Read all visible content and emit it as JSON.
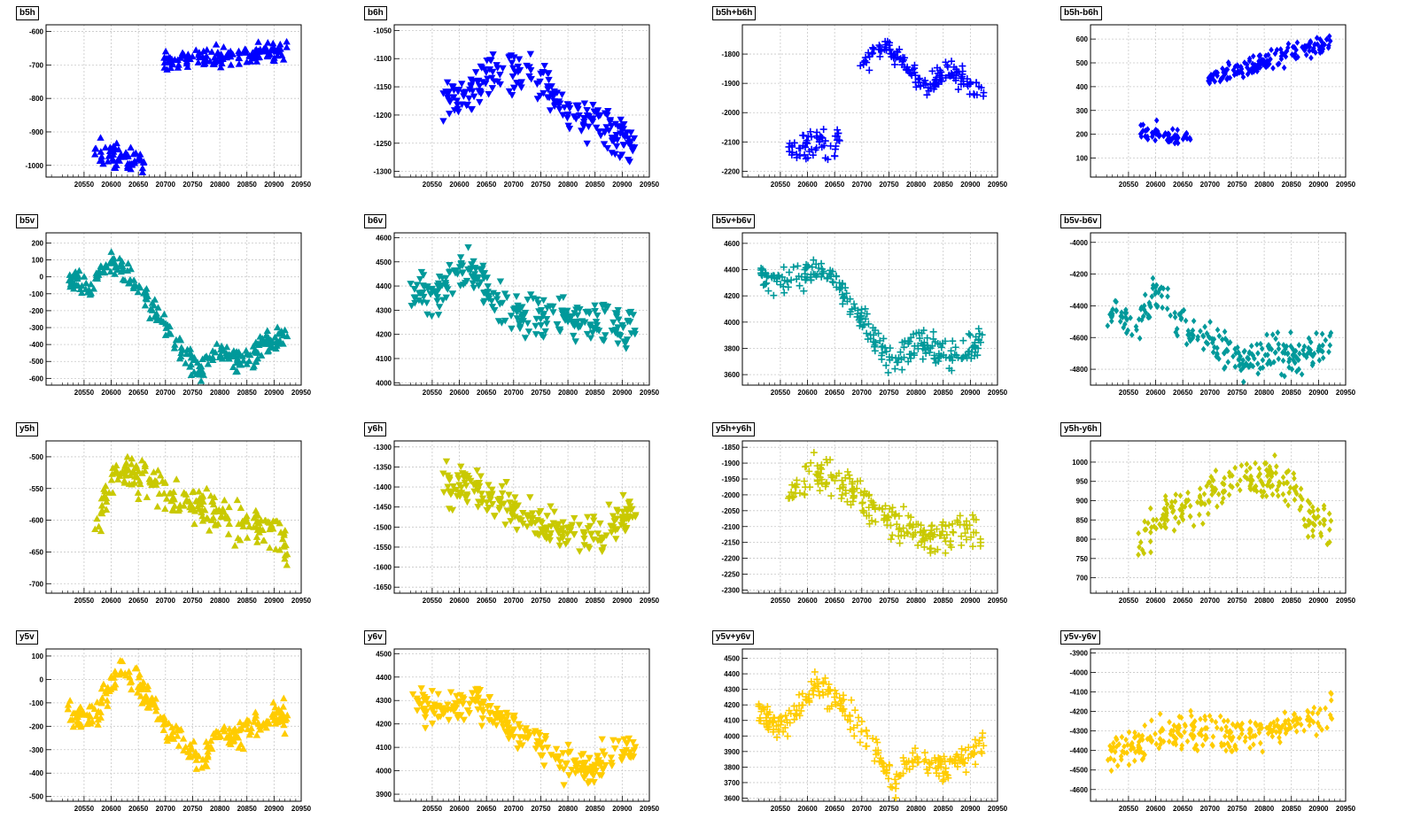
{
  "figure": {
    "x_ticks": [
      20550,
      20600,
      20650,
      20700,
      20750,
      20800,
      20850,
      20900,
      20950
    ],
    "xlim": [
      20480,
      20950
    ],
    "colors": {
      "blue": "#0000ff",
      "teal": "#00999a",
      "olive": "#c9c901",
      "gold": "#ffcc00"
    }
  },
  "chart_data": [
    {
      "title": "b5h",
      "type": "scatter",
      "color": "#0000ff",
      "marker": "triangle-up",
      "ylim": [
        -1035,
        -580
      ],
      "y_ticks": [
        -600,
        -700,
        -800,
        -900,
        -1000
      ],
      "segments": [
        {
          "x0": 20570,
          "x1": 20662,
          "center": [
            -960,
            -985
          ],
          "spread": 55
        },
        {
          "x0": 20697,
          "x1": 20925,
          "center": [
            -690,
            -660
          ],
          "spread": 45
        }
      ]
    },
    {
      "title": "b6h",
      "type": "scatter",
      "color": "#0000ff",
      "marker": "triangle-down",
      "ylim": [
        -1310,
        -1040
      ],
      "y_ticks": [
        -1050,
        -1100,
        -1150,
        -1200,
        -1250,
        -1300
      ],
      "segments": [
        {
          "x0": 20565,
          "x1": 20925,
          "points": [
            [
              20570,
              -1180
            ],
            [
              20620,
              -1160
            ],
            [
              20660,
              -1125
            ],
            [
              20720,
              -1120
            ],
            [
              20760,
              -1140
            ],
            [
              20800,
              -1200
            ],
            [
              20840,
              -1210
            ],
            [
              20880,
              -1230
            ],
            [
              20925,
              -1250
            ]
          ],
          "spread": 55
        }
      ]
    },
    {
      "title": "b5h+b6h",
      "type": "scatter",
      "color": "#0000ff",
      "marker": "plus",
      "ylim": [
        -2220,
        -1700
      ],
      "y_ticks": [
        -1800,
        -1900,
        -2000,
        -2100,
        -2200
      ],
      "segments": [
        {
          "x0": 20565,
          "x1": 20660,
          "center": [
            -2130,
            -2100
          ],
          "spread": 70
        },
        {
          "x0": 20695,
          "x1": 20925,
          "points": [
            [
              20700,
              -1830
            ],
            [
              20740,
              -1770
            ],
            [
              20780,
              -1830
            ],
            [
              20820,
              -1920
            ],
            [
              20860,
              -1850
            ],
            [
              20900,
              -1900
            ],
            [
              20925,
              -1940
            ]
          ],
          "spread": 60
        }
      ]
    },
    {
      "title": "b5h-b6h",
      "type": "scatter",
      "color": "#0000ff",
      "marker": "diamond",
      "ylim": [
        20,
        660
      ],
      "y_ticks": [
        100,
        200,
        300,
        400,
        500,
        600
      ],
      "segments": [
        {
          "x0": 20570,
          "x1": 20665,
          "center": [
            230,
            160
          ],
          "spread": 70
        },
        {
          "x0": 20697,
          "x1": 20925,
          "center": [
            440,
            590
          ],
          "spread": 60
        }
      ]
    },
    {
      "title": "b5v",
      "type": "scatter",
      "color": "#00999a",
      "marker": "triangle-up",
      "ylim": [
        -640,
        260
      ],
      "y_ticks": [
        200,
        100,
        0,
        -100,
        -200,
        -300,
        -400,
        -500,
        -600
      ],
      "segments": [
        {
          "x0": 20520,
          "x1": 20925,
          "points": [
            [
              20520,
              0
            ],
            [
              20560,
              -80
            ],
            [
              20600,
              100
            ],
            [
              20640,
              0
            ],
            [
              20680,
              -200
            ],
            [
              20720,
              -400
            ],
            [
              20760,
              -550
            ],
            [
              20800,
              -450
            ],
            [
              20850,
              -500
            ],
            [
              20880,
              -400
            ],
            [
              20925,
              -350
            ]
          ],
          "spread": 110
        }
      ]
    },
    {
      "title": "b6v",
      "type": "scatter",
      "color": "#00999a",
      "marker": "triangle-down",
      "ylim": [
        3990,
        4620
      ],
      "y_ticks": [
        4000,
        4100,
        4200,
        4300,
        4400,
        4500,
        4600
      ],
      "segments": [
        {
          "x0": 20510,
          "x1": 20925,
          "points": [
            [
              20510,
              4390
            ],
            [
              20560,
              4350
            ],
            [
              20620,
              4480
            ],
            [
              20660,
              4350
            ],
            [
              20720,
              4270
            ],
            [
              20800,
              4270
            ],
            [
              20860,
              4250
            ],
            [
              20925,
              4230
            ]
          ],
          "spread": 130
        }
      ]
    },
    {
      "title": "b5v+b6v",
      "type": "scatter",
      "color": "#00999a",
      "marker": "plus",
      "ylim": [
        3520,
        4680
      ],
      "y_ticks": [
        3600,
        3800,
        4000,
        4200,
        4400,
        4600
      ],
      "segments": [
        {
          "x0": 20510,
          "x1": 20925,
          "points": [
            [
              20510,
              4380
            ],
            [
              20560,
              4300
            ],
            [
              20620,
              4400
            ],
            [
              20650,
              4350
            ],
            [
              20700,
              4000
            ],
            [
              20760,
              3700
            ],
            [
              20800,
              3850
            ],
            [
              20860,
              3750
            ],
            [
              20925,
              3850
            ]
          ],
          "spread": 160
        }
      ]
    },
    {
      "title": "b5v-b6v",
      "type": "scatter",
      "color": "#00999a",
      "marker": "diamond",
      "ylim": [
        -4900,
        -3940
      ],
      "y_ticks": [
        -4000,
        -4200,
        -4400,
        -4600,
        -4800
      ],
      "segments": [
        {
          "x0": 20510,
          "x1": 20925,
          "points": [
            [
              20510,
              -4380
            ],
            [
              20560,
              -4580
            ],
            [
              20600,
              -4300
            ],
            [
              20640,
              -4500
            ],
            [
              20700,
              -4600
            ],
            [
              20760,
              -4780
            ],
            [
              20800,
              -4700
            ],
            [
              20860,
              -4720
            ],
            [
              20925,
              -4600
            ]
          ],
          "spread": 160
        }
      ]
    },
    {
      "title": "y5h",
      "type": "scatter",
      "color": "#c9c901",
      "marker": "triangle-up",
      "ylim": [
        -715,
        -475
      ],
      "y_ticks": [
        -500,
        -550,
        -600,
        -650,
        -700
      ],
      "segments": [
        {
          "x0": 20570,
          "x1": 20925,
          "points": [
            [
              20570,
              -600
            ],
            [
              20610,
              -520
            ],
            [
              20660,
              -530
            ],
            [
              20720,
              -565
            ],
            [
              20780,
              -590
            ],
            [
              20840,
              -600
            ],
            [
              20880,
              -610
            ],
            [
              20925,
              -640
            ]
          ],
          "spread": 45
        }
      ]
    },
    {
      "title": "y6h",
      "type": "scatter",
      "color": "#c9c901",
      "marker": "triangle-down",
      "ylim": [
        -1665,
        -1285
      ],
      "y_ticks": [
        -1300,
        -1350,
        -1400,
        -1450,
        -1500,
        -1550,
        -1600,
        -1650
      ],
      "segments": [
        {
          "x0": 20570,
          "x1": 20925,
          "points": [
            [
              20570,
              -1400
            ],
            [
              20620,
              -1400
            ],
            [
              20680,
              -1440
            ],
            [
              20740,
              -1490
            ],
            [
              20800,
              -1520
            ],
            [
              20860,
              -1530
            ],
            [
              20900,
              -1470
            ],
            [
              20925,
              -1460
            ]
          ],
          "spread": 70
        }
      ]
    },
    {
      "title": "y5h+y6h",
      "type": "scatter",
      "color": "#c9c901",
      "marker": "plus",
      "ylim": [
        -2310,
        -1830
      ],
      "y_ticks": [
        -1850,
        -1900,
        -1950,
        -2000,
        -2050,
        -2100,
        -2150,
        -2200,
        -2250,
        -2300
      ],
      "segments": [
        {
          "x0": 20565,
          "x1": 20925,
          "points": [
            [
              20565,
              -2000
            ],
            [
              20610,
              -1930
            ],
            [
              20660,
              -1950
            ],
            [
              20720,
              -2040
            ],
            [
              20780,
              -2100
            ],
            [
              20840,
              -2150
            ],
            [
              20880,
              -2110
            ],
            [
              20925,
              -2120
            ]
          ],
          "spread": 80
        }
      ]
    },
    {
      "title": "y5h-y6h",
      "type": "scatter",
      "color": "#c9c901",
      "marker": "diamond",
      "ylim": [
        660,
        1055
      ],
      "y_ticks": [
        700,
        750,
        800,
        850,
        900,
        950,
        1000
      ],
      "segments": [
        {
          "x0": 20565,
          "x1": 20925,
          "points": [
            [
              20565,
              800
            ],
            [
              20620,
              860
            ],
            [
              20680,
              900
            ],
            [
              20740,
              950
            ],
            [
              20800,
              960
            ],
            [
              20850,
              950
            ],
            [
              20880,
              860
            ],
            [
              20925,
              820
            ]
          ],
          "spread": 80
        }
      ]
    },
    {
      "title": "y5v",
      "type": "scatter",
      "color": "#ffcc00",
      "marker": "triangle-up",
      "ylim": [
        -520,
        130
      ],
      "y_ticks": [
        100,
        0,
        -100,
        -200,
        -300,
        -400,
        -500
      ],
      "segments": [
        {
          "x0": 20520,
          "x1": 20925,
          "points": [
            [
              20520,
              -150
            ],
            [
              20570,
              -150
            ],
            [
              20620,
              50
            ],
            [
              20660,
              -50
            ],
            [
              20700,
              -200
            ],
            [
              20760,
              -350
            ],
            [
              20800,
              -250
            ],
            [
              20860,
              -200
            ],
            [
              20925,
              -150
            ]
          ],
          "spread": 90
        }
      ]
    },
    {
      "title": "y6v",
      "type": "scatter",
      "color": "#ffcc00",
      "marker": "triangle-down",
      "ylim": [
        3870,
        4520
      ],
      "y_ticks": [
        3900,
        4000,
        4100,
        4200,
        4300,
        4400,
        4500
      ],
      "segments": [
        {
          "x0": 20510,
          "x1": 20925,
          "points": [
            [
              20510,
              4300
            ],
            [
              20560,
              4250
            ],
            [
              20620,
              4300
            ],
            [
              20660,
              4250
            ],
            [
              20720,
              4150
            ],
            [
              20780,
              4050
            ],
            [
              20840,
              4000
            ],
            [
              20900,
              4080
            ],
            [
              20925,
              4100
            ]
          ],
          "spread": 110
        }
      ]
    },
    {
      "title": "y5v+y6v",
      "type": "scatter",
      "color": "#ffcc00",
      "marker": "plus",
      "ylim": [
        3580,
        4560
      ],
      "y_ticks": [
        3600,
        3700,
        3800,
        3900,
        4000,
        4100,
        4200,
        4300,
        4400,
        4500
      ],
      "segments": [
        {
          "x0": 20510,
          "x1": 20925,
          "points": [
            [
              20510,
              4150
            ],
            [
              20560,
              4050
            ],
            [
              20620,
              4350
            ],
            [
              20660,
              4200
            ],
            [
              20720,
              3950
            ],
            [
              20760,
              3700
            ],
            [
              20800,
              3850
            ],
            [
              20860,
              3800
            ],
            [
              20925,
              3950
            ]
          ],
          "spread": 130
        }
      ]
    },
    {
      "title": "y5v-y6v",
      "type": "scatter",
      "color": "#ffcc00",
      "marker": "diamond",
      "ylim": [
        -4660,
        -3880
      ],
      "y_ticks": [
        -3900,
        -4000,
        -4100,
        -4200,
        -4300,
        -4400,
        -4500,
        -4600
      ],
      "segments": [
        {
          "x0": 20510,
          "x1": 20925,
          "points": [
            [
              20510,
              -4400
            ],
            [
              20560,
              -4380
            ],
            [
              20620,
              -4300
            ],
            [
              20680,
              -4300
            ],
            [
              20740,
              -4320
            ],
            [
              20800,
              -4300
            ],
            [
              20860,
              -4260
            ],
            [
              20925,
              -4200
            ]
          ],
          "spread": 130
        }
      ]
    }
  ]
}
